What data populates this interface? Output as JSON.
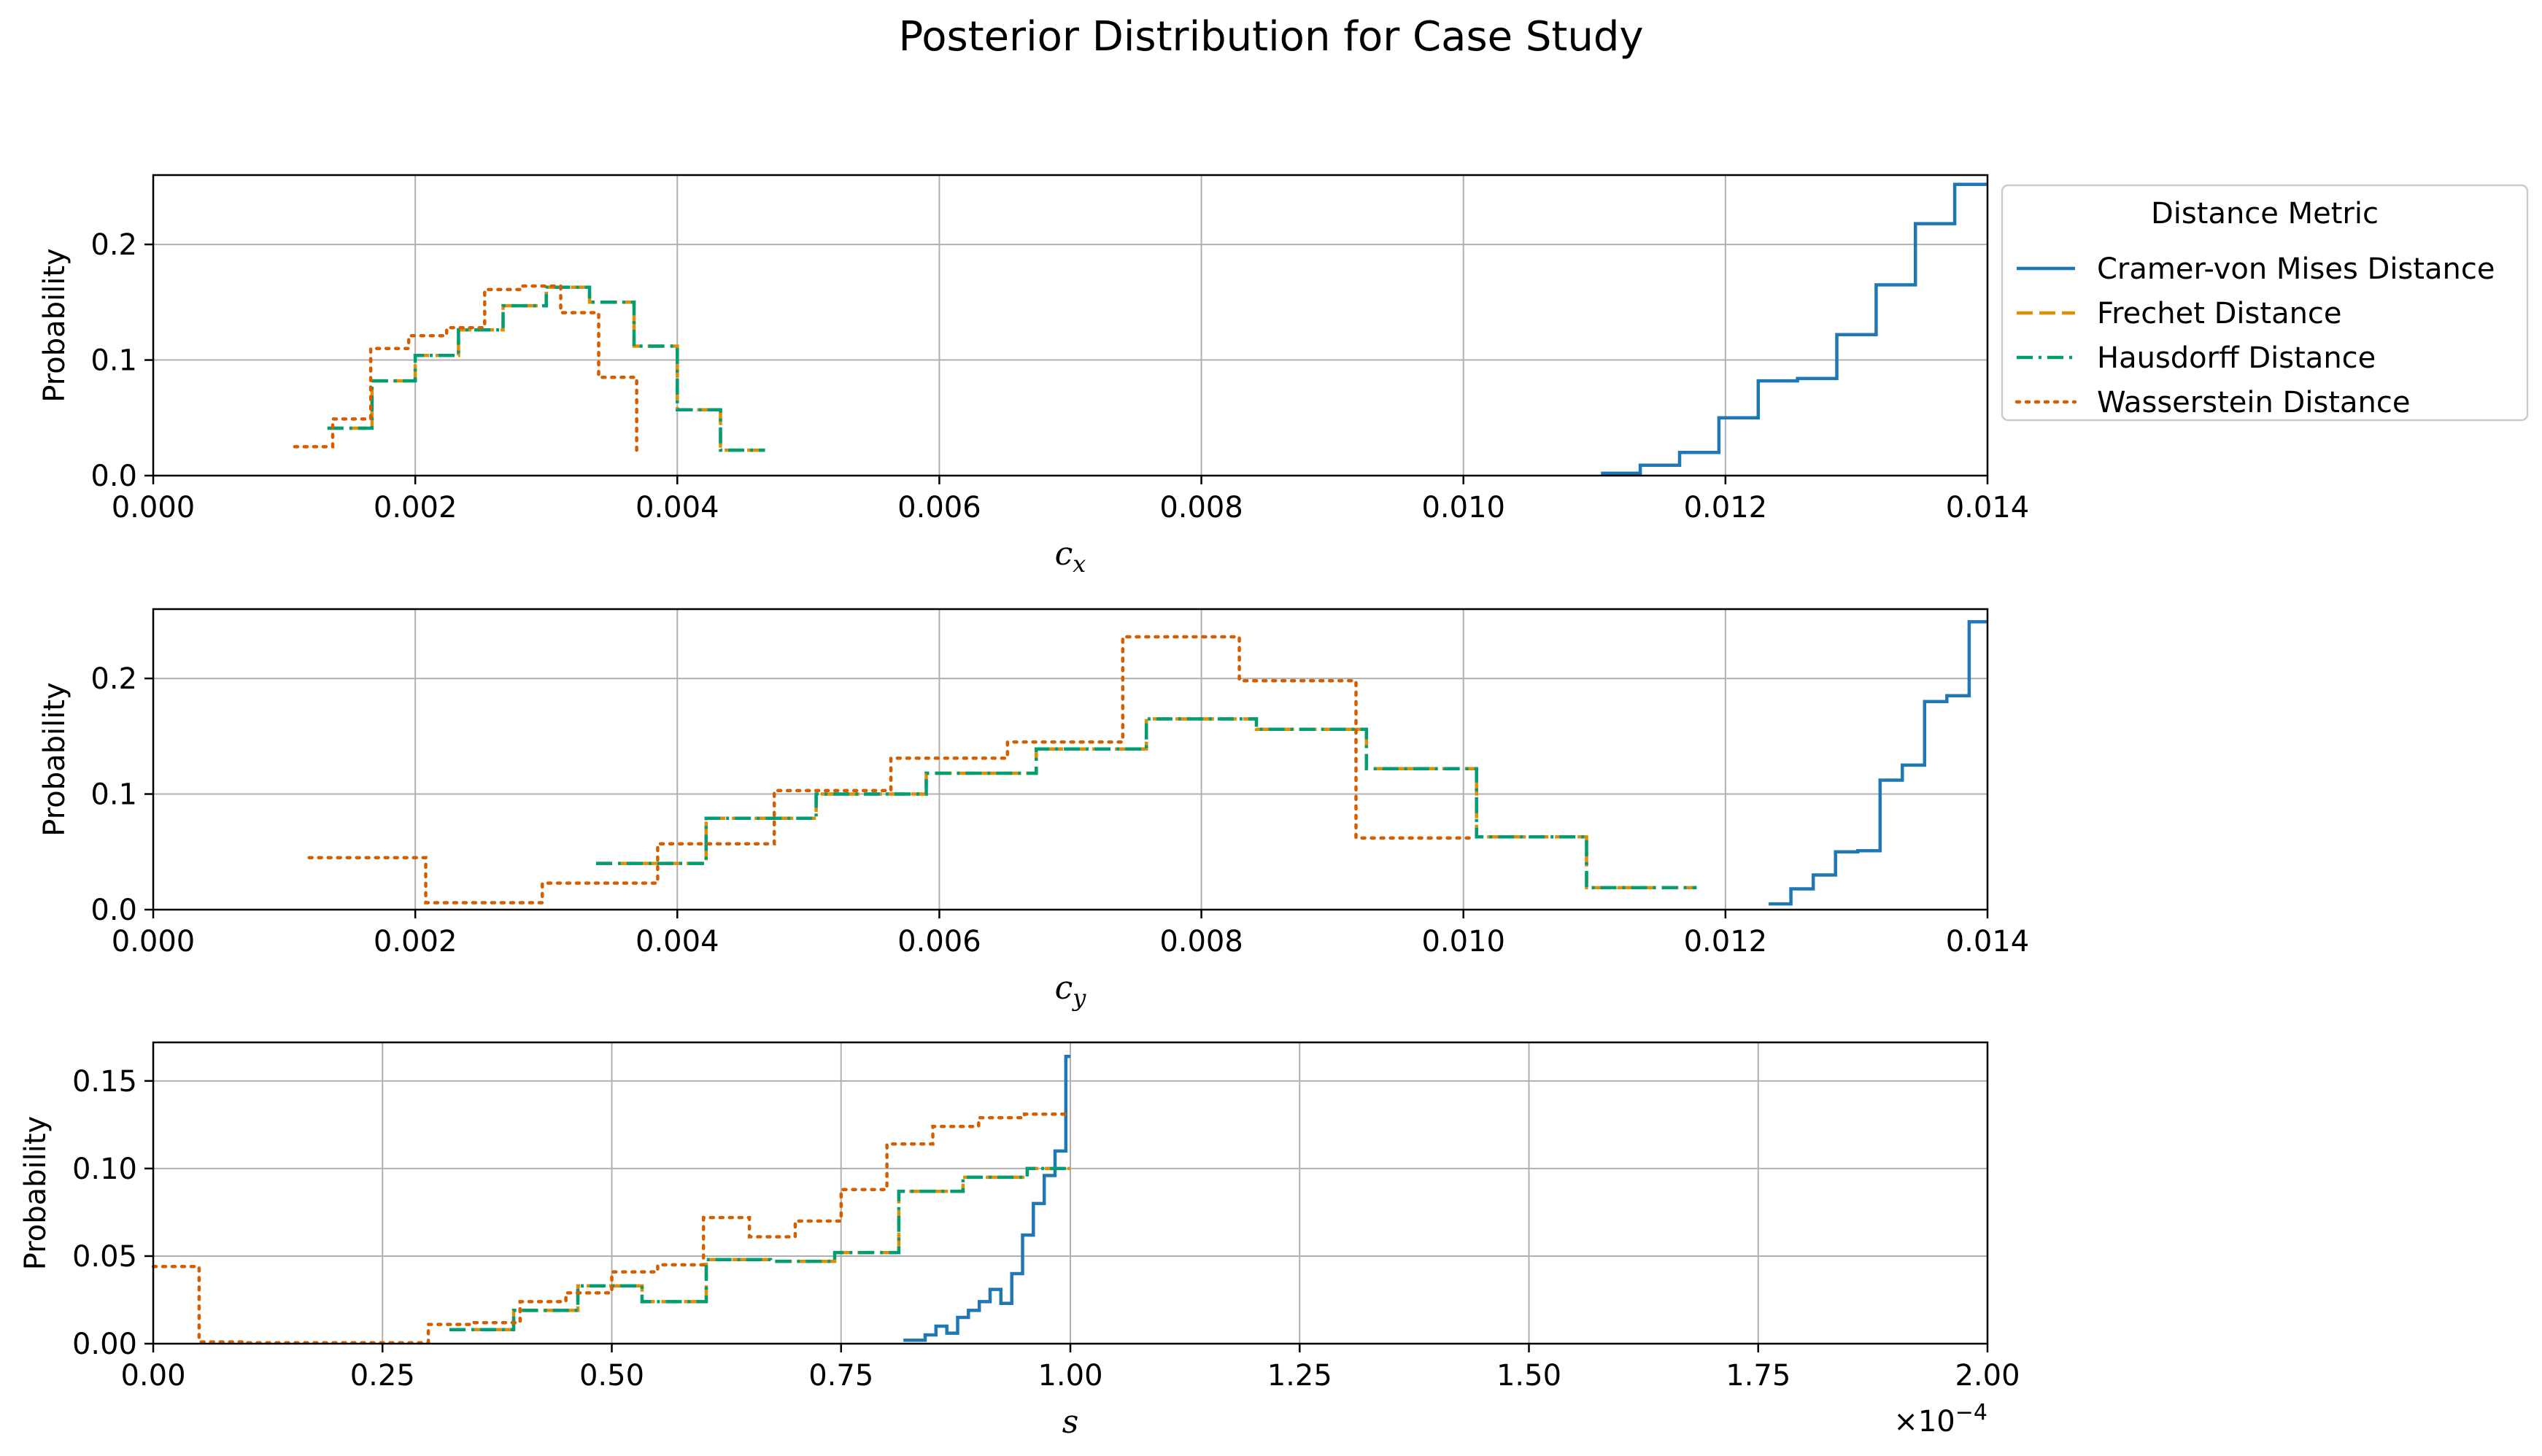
{
  "title": "Posterior Distribution for Case Study",
  "legend": {
    "title": "Distance Metric",
    "placement": "right of top panel"
  },
  "colors": {
    "Cramer-von Mises Distance": "#1f77b4",
    "Frechet Distance": "#de8f05",
    "Hausdorff Distance": "#029e73",
    "Wasserstein Distance": "#d55e00"
  },
  "chart_data": [
    {
      "type": "line",
      "subtype": "step-histogram",
      "xlabel_var": "c",
      "xlabel_sub": "x",
      "ylabel": "Probability",
      "xlim": [
        0,
        0.014
      ],
      "ylim": [
        0,
        0.26
      ],
      "xticks": [
        "0.000",
        "0.002",
        "0.004",
        "0.006",
        "0.008",
        "0.010",
        "0.012",
        "0.014"
      ],
      "xtick_values": [
        0,
        0.002,
        0.004,
        0.006,
        0.008,
        0.01,
        0.012,
        0.014
      ],
      "yticks": [
        "0.0",
        "0.1",
        "0.2"
      ],
      "ytick_values": [
        0,
        0.1,
        0.2
      ],
      "grid": true,
      "series": [
        {
          "name": "Cramer-von Mises Distance",
          "style": "solid",
          "edges": [
            0.01105,
            0.01135,
            0.01165,
            0.01195,
            0.01225,
            0.01255,
            0.01285,
            0.01315,
            0.01345,
            0.01375,
            0.014
          ],
          "values": [
            0.002,
            0.009,
            0.02,
            0.05,
            0.082,
            0.084,
            0.122,
            0.165,
            0.218,
            0.252
          ]
        },
        {
          "name": "Frechet Distance",
          "style": "dashed",
          "edges": [
            0.00133,
            0.00167,
            0.002,
            0.00233,
            0.00267,
            0.003,
            0.00333,
            0.00367,
            0.004,
            0.00433,
            0.00467
          ],
          "values": [
            0.041,
            0.082,
            0.104,
            0.126,
            0.147,
            0.163,
            0.15,
            0.112,
            0.057,
            0.022
          ]
        },
        {
          "name": "Hausdorff Distance",
          "style": "dashdot",
          "edges": [
            0.00133,
            0.00167,
            0.002,
            0.00233,
            0.00267,
            0.003,
            0.00333,
            0.00367,
            0.004,
            0.00433,
            0.00467
          ],
          "values": [
            0.041,
            0.082,
            0.104,
            0.126,
            0.147,
            0.163,
            0.15,
            0.112,
            0.057,
            0.022
          ]
        },
        {
          "name": "Wasserstein Distance",
          "style": "dotted",
          "edges": [
            0.00108,
            0.00137,
            0.00166,
            0.00195,
            0.00224,
            0.00253,
            0.00282,
            0.00311,
            0.0034,
            0.00369
          ],
          "values": [
            0.025,
            0.049,
            0.11,
            0.121,
            0.128,
            0.161,
            0.164,
            0.141,
            0.085,
            0.017
          ]
        }
      ]
    },
    {
      "type": "line",
      "subtype": "step-histogram",
      "xlabel_var": "c",
      "xlabel_sub": "y",
      "ylabel": "Probability",
      "xlim": [
        0,
        0.014
      ],
      "ylim": [
        0,
        0.26
      ],
      "xticks": [
        "0.000",
        "0.002",
        "0.004",
        "0.006",
        "0.008",
        "0.010",
        "0.012",
        "0.014"
      ],
      "xtick_values": [
        0,
        0.002,
        0.004,
        0.006,
        0.008,
        0.01,
        0.012,
        0.014
      ],
      "yticks": [
        "0.0",
        "0.1",
        "0.2"
      ],
      "ytick_values": [
        0,
        0.1,
        0.2
      ],
      "grid": true,
      "series": [
        {
          "name": "Cramer-von Mises Distance",
          "style": "solid",
          "edges": [
            0.01233,
            0.0125,
            0.01267,
            0.01284,
            0.01301,
            0.01318,
            0.01335,
            0.01352,
            0.01369,
            0.01386,
            0.014
          ],
          "values": [
            0.005,
            0.018,
            0.03,
            0.05,
            0.051,
            0.112,
            0.125,
            0.18,
            0.185,
            0.249
          ]
        },
        {
          "name": "Frechet Distance",
          "style": "dashed",
          "edges": [
            0.00338,
            0.00422,
            0.00506,
            0.0059,
            0.00674,
            0.00758,
            0.00842,
            0.00926,
            0.0101,
            0.01094,
            0.01178
          ],
          "values": [
            0.04,
            0.079,
            0.1,
            0.118,
            0.139,
            0.165,
            0.156,
            0.122,
            0.063,
            0.019
          ]
        },
        {
          "name": "Hausdorff Distance",
          "style": "dashdot",
          "edges": [
            0.00338,
            0.00422,
            0.00506,
            0.0059,
            0.00674,
            0.00758,
            0.00842,
            0.00926,
            0.0101,
            0.01094,
            0.01178
          ],
          "values": [
            0.04,
            0.079,
            0.1,
            0.118,
            0.139,
            0.165,
            0.156,
            0.122,
            0.063,
            0.019
          ]
        },
        {
          "name": "Wasserstein Distance",
          "style": "dotted",
          "edges": [
            0.00119,
            0.00208,
            0.00297,
            0.00385,
            0.00474,
            0.00563,
            0.00652,
            0.0074,
            0.00829,
            0.00918,
            0.01007
          ],
          "values": [
            0.045,
            0.006,
            0.023,
            0.057,
            0.103,
            0.131,
            0.145,
            0.236,
            0.198,
            0.062
          ]
        }
      ]
    },
    {
      "type": "line",
      "subtype": "step-histogram",
      "xlabel_var": "s",
      "xlabel_sub": "",
      "ylabel": "Probability",
      "xlim": [
        0,
        2.0
      ],
      "ylim": [
        0,
        0.172
      ],
      "offset_text": "×10",
      "offset_exp": "−4",
      "xticks": [
        "0.00",
        "0.25",
        "0.50",
        "0.75",
        "1.00",
        "1.25",
        "1.50",
        "1.75",
        "2.00"
      ],
      "xtick_values": [
        0,
        0.25,
        0.5,
        0.75,
        1.0,
        1.25,
        1.5,
        1.75,
        2.0
      ],
      "yticks": [
        "0.00",
        "0.05",
        "0.10",
        "0.15"
      ],
      "ytick_values": [
        0,
        0.05,
        0.1,
        0.15
      ],
      "grid": true,
      "series": [
        {
          "name": "Cramer-von Mises Distance",
          "style": "solid",
          "edges": [
            0.818,
            0.8417,
            0.8535,
            0.8653,
            0.8771,
            0.8889,
            0.9007,
            0.9125,
            0.9243,
            0.9361,
            0.9479,
            0.9597,
            0.9715,
            0.9833,
            0.9951,
            1.0
          ],
          "values": [
            0.002,
            0.005,
            0.01,
            0.006,
            0.015,
            0.019,
            0.024,
            0.031,
            0.023,
            0.04,
            0.062,
            0.08,
            0.096,
            0.11,
            0.164
          ]
        },
        {
          "name": "Frechet Distance",
          "style": "dashed",
          "edges": [
            0.323,
            0.393,
            0.463,
            0.533,
            0.603,
            0.673,
            0.743,
            0.813,
            0.883,
            0.953,
            1.0
          ],
          "values": [
            0.008,
            0.019,
            0.033,
            0.024,
            0.048,
            0.047,
            0.052,
            0.087,
            0.095,
            0.1
          ]
        },
        {
          "name": "Hausdorff Distance",
          "style": "dashdot",
          "edges": [
            0.323,
            0.393,
            0.463,
            0.533,
            0.603,
            0.673,
            0.743,
            0.813,
            0.883,
            0.953,
            1.0
          ],
          "values": [
            0.008,
            0.019,
            0.033,
            0.024,
            0.048,
            0.047,
            0.052,
            0.087,
            0.095,
            0.1
          ]
        },
        {
          "name": "Wasserstein Distance",
          "style": "dotted",
          "edges": [
            0.0,
            0.05,
            0.1,
            0.15,
            0.2,
            0.25,
            0.3,
            0.35,
            0.4,
            0.45,
            0.5,
            0.55,
            0.6,
            0.65,
            0.7,
            0.75,
            0.8,
            0.85,
            0.9,
            0.95,
            1.0
          ],
          "values": [
            0.044,
            0.001,
            0.0005,
            0.0005,
            0.0005,
            0.0005,
            0.011,
            0.012,
            0.024,
            0.029,
            0.041,
            0.045,
            0.072,
            0.061,
            0.07,
            0.088,
            0.114,
            0.124,
            0.129,
            0.131
          ]
        }
      ]
    }
  ]
}
